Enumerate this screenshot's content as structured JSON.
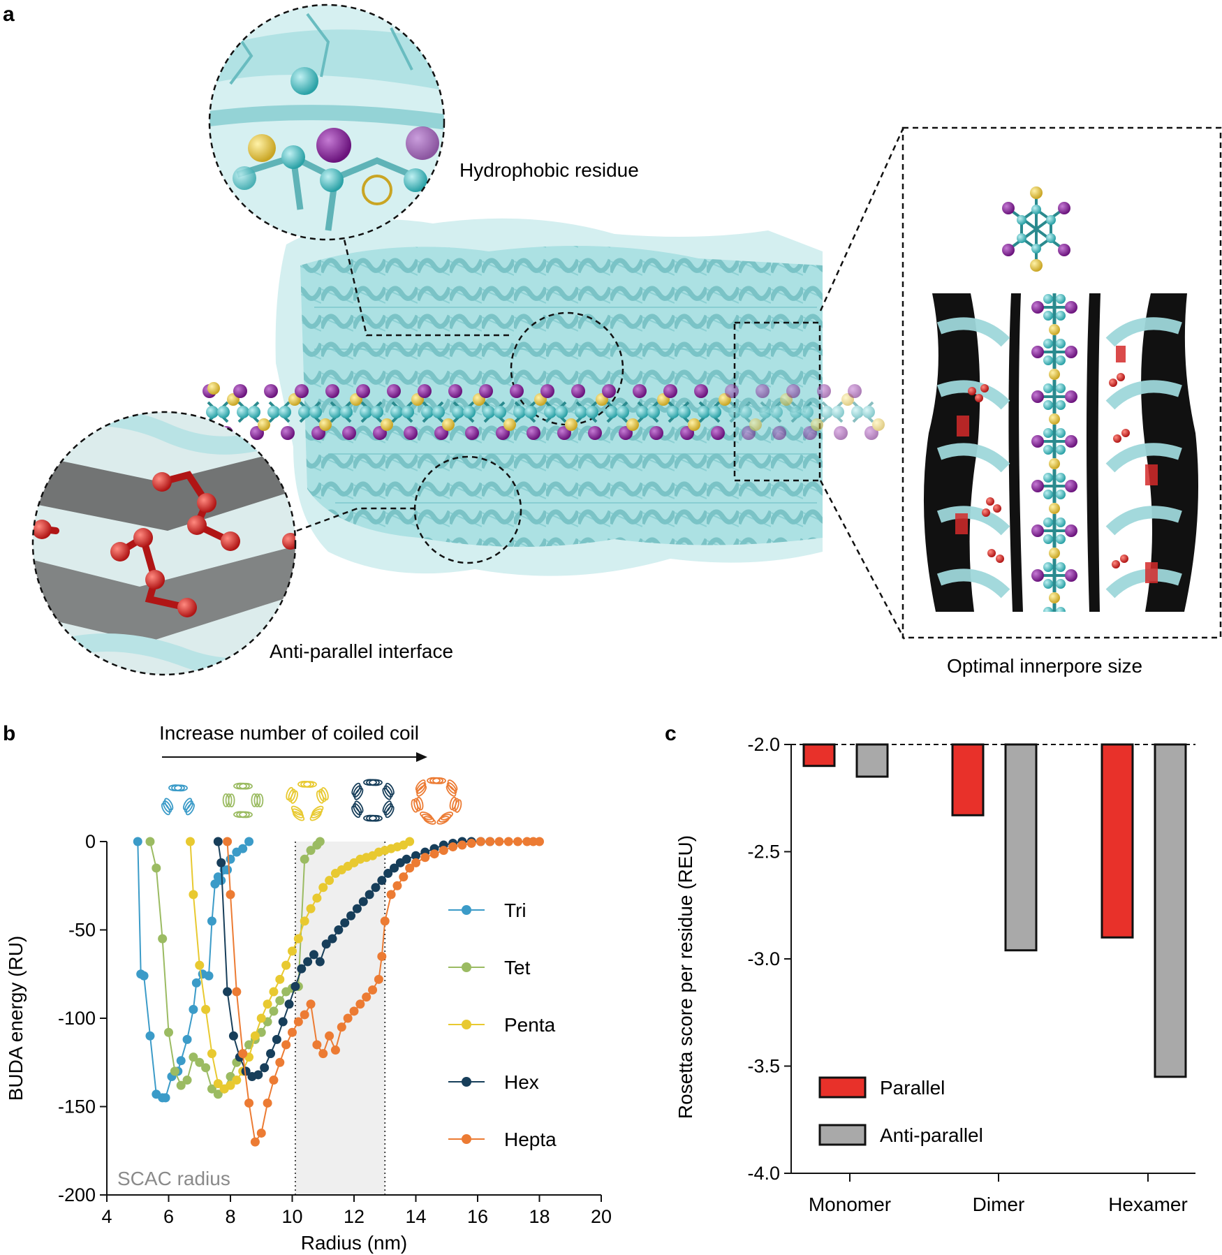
{
  "panel_a": {
    "label": "a",
    "callouts": {
      "hydrophobic": "Hydrophobic residue",
      "antiparallel": "Anti-parallel interface",
      "innerpore": "Optimal innerpore size"
    },
    "colors": {
      "protein": "#8fd3d6",
      "protein_dark": "#4fa7ab",
      "atom_purple": "#7a1f8c",
      "atom_yellow": "#e0c23a",
      "atom_teal": "#2aa1a6",
      "atom_red": "#d42a2a"
    }
  },
  "panel_b": {
    "label": "b",
    "arrow_text": "Increase number of coiled coil",
    "shaded_label": "SCAC radius",
    "shaded_range": [
      10.1,
      13.0
    ],
    "icons": [
      {
        "name": "tri-icon",
        "color": "#3b9bc8",
        "n": 3
      },
      {
        "name": "tet-icon",
        "color": "#9bbb62",
        "n": 4
      },
      {
        "name": "penta-icon",
        "color": "#e8c930",
        "n": 5
      },
      {
        "name": "hex-icon",
        "color": "#173e5a",
        "n": 6
      },
      {
        "name": "hepta-icon",
        "color": "#ec7b33",
        "n": 7
      }
    ]
  },
  "panel_c": {
    "label": "c"
  },
  "chart_data": [
    {
      "type": "line",
      "panel": "b",
      "title": "",
      "xlabel": "Radius (nm)",
      "ylabel": "BUDA energy (RU)",
      "xlim": [
        4,
        20
      ],
      "ylim": [
        -200,
        0
      ],
      "xticks": [
        "4",
        "6",
        "8",
        "10",
        "12",
        "14",
        "16",
        "18",
        "20"
      ],
      "yticks": [
        "0",
        "-50",
        "-100",
        "-150",
        "-200"
      ],
      "legend_position": "right",
      "series": [
        {
          "name": "Tri",
          "color": "#3b9bc8",
          "x": [
            5.0,
            5.1,
            5.2,
            5.4,
            5.6,
            5.8,
            5.9,
            6.1,
            6.3,
            6.4,
            6.6,
            6.8,
            6.9,
            7.1,
            7.3,
            7.4,
            7.5,
            7.6,
            7.7,
            7.8,
            7.9,
            8.0,
            8.2,
            8.4,
            8.6
          ],
          "y": [
            0,
            -75,
            -76,
            -110,
            -143,
            -145,
            -145,
            -133,
            -130,
            -124,
            -112,
            -95,
            -80,
            -75,
            -76,
            -45,
            -24,
            -20,
            -22,
            -16,
            -16,
            -10,
            -6,
            -4,
            0
          ]
        },
        {
          "name": "Tet",
          "color": "#9bbb62",
          "x": [
            5.4,
            5.6,
            5.8,
            6.0,
            6.2,
            6.4,
            6.6,
            6.8,
            7.0,
            7.2,
            7.4,
            7.6,
            7.8,
            8.0,
            8.2,
            8.4,
            8.6,
            8.8,
            9.0,
            9.2,
            9.4,
            9.6,
            9.8,
            10.0,
            10.2,
            10.4,
            10.6,
            10.8,
            10.9
          ],
          "y": [
            0,
            -15,
            -55,
            -108,
            -130,
            -138,
            -135,
            -122,
            -125,
            -128,
            -140,
            -143,
            -140,
            -133,
            -125,
            -120,
            -115,
            -112,
            -108,
            -102,
            -96,
            -90,
            -85,
            -83,
            -82,
            -10,
            -5,
            -2,
            0
          ]
        },
        {
          "name": "Penta",
          "color": "#e8c930",
          "x": [
            6.7,
            6.8,
            7.0,
            7.2,
            7.4,
            7.6,
            7.8,
            8.0,
            8.2,
            8.4,
            8.6,
            8.8,
            9.0,
            9.2,
            9.4,
            9.6,
            9.8,
            10.0,
            10.2,
            10.4,
            10.6,
            10.8,
            11.0,
            11.2,
            11.4,
            11.6,
            11.8,
            12.0,
            12.2,
            12.4,
            12.6,
            12.8,
            13.0,
            13.2,
            13.4,
            13.6,
            13.8
          ],
          "y": [
            0,
            -30,
            -70,
            -95,
            -120,
            -137,
            -140,
            -138,
            -135,
            -130,
            -122,
            -110,
            -100,
            -92,
            -85,
            -78,
            -70,
            -62,
            -55,
            -45,
            -38,
            -32,
            -26,
            -22,
            -18,
            -16,
            -14,
            -12,
            -10,
            -9,
            -8,
            -6,
            -5,
            -4,
            -3,
            -2,
            0
          ]
        },
        {
          "name": "Hex",
          "color": "#173e5a",
          "x": [
            7.6,
            7.7,
            7.9,
            8.1,
            8.3,
            8.5,
            8.7,
            8.9,
            9.1,
            9.3,
            9.5,
            9.7,
            9.9,
            10.1,
            10.3,
            10.5,
            10.7,
            10.9,
            11.1,
            11.3,
            11.5,
            11.7,
            11.9,
            12.1,
            12.3,
            12.5,
            12.7,
            12.9,
            13.1,
            13.3,
            13.5,
            13.7,
            14.0,
            14.3,
            14.6,
            14.9,
            15.2,
            15.5,
            15.8,
            16.1,
            16.4
          ],
          "y": [
            0,
            -12,
            -85,
            -110,
            -122,
            -130,
            -133,
            -132,
            -128,
            -120,
            -112,
            -102,
            -92,
            -82,
            -72,
            -68,
            -64,
            -68,
            -58,
            -55,
            -50,
            -46,
            -42,
            -38,
            -34,
            -30,
            -26,
            -22,
            -18,
            -15,
            -12,
            -10,
            -8,
            -6,
            -4,
            -2,
            -1,
            0,
            0,
            0,
            0
          ]
        },
        {
          "name": "Hepta",
          "color": "#ec7b33",
          "x": [
            7.9,
            8.0,
            8.2,
            8.4,
            8.6,
            8.8,
            9.0,
            9.2,
            9.4,
            9.6,
            9.8,
            10.0,
            10.2,
            10.4,
            10.6,
            10.8,
            11.0,
            11.2,
            11.4,
            11.6,
            11.8,
            12.0,
            12.2,
            12.4,
            12.6,
            12.8,
            12.9,
            13.0,
            13.2,
            13.4,
            13.6,
            13.8,
            14.0,
            14.3,
            14.6,
            14.9,
            15.2,
            15.5,
            15.8,
            16.1,
            16.4,
            16.7,
            17.0,
            17.3,
            17.6,
            17.8,
            18.0
          ],
          "y": [
            0,
            -30,
            -85,
            -120,
            -148,
            -170,
            -165,
            -148,
            -135,
            -125,
            -115,
            -108,
            -102,
            -98,
            -92,
            -115,
            -120,
            -110,
            -118,
            -105,
            -100,
            -96,
            -92,
            -88,
            -84,
            -78,
            -65,
            -45,
            -30,
            -25,
            -20,
            -15,
            -12,
            -9,
            -7,
            -5,
            -3,
            -2,
            -1,
            0,
            0,
            0,
            0,
            0,
            0,
            0,
            0
          ]
        }
      ]
    },
    {
      "type": "bar",
      "panel": "c",
      "title": "",
      "xlabel": "",
      "ylabel": "Rosetta score per residue (REU)",
      "categories": [
        "Monomer",
        "Dimer",
        "Hexamer"
      ],
      "ylim": [
        -4.0,
        -2.0
      ],
      "yticks": [
        "-2.0",
        "-2.5",
        "-3.0",
        "-3.5",
        "-4.0"
      ],
      "baseline": -2.0,
      "legend_position": "bottom-left",
      "series": [
        {
          "name": "Parallel",
          "color": "#e8312a",
          "values": [
            -2.1,
            -2.33,
            -2.9
          ]
        },
        {
          "name": "Anti-parallel",
          "color": "#a9a9a9",
          "values": [
            -2.15,
            -2.96,
            -3.55
          ]
        }
      ]
    }
  ]
}
